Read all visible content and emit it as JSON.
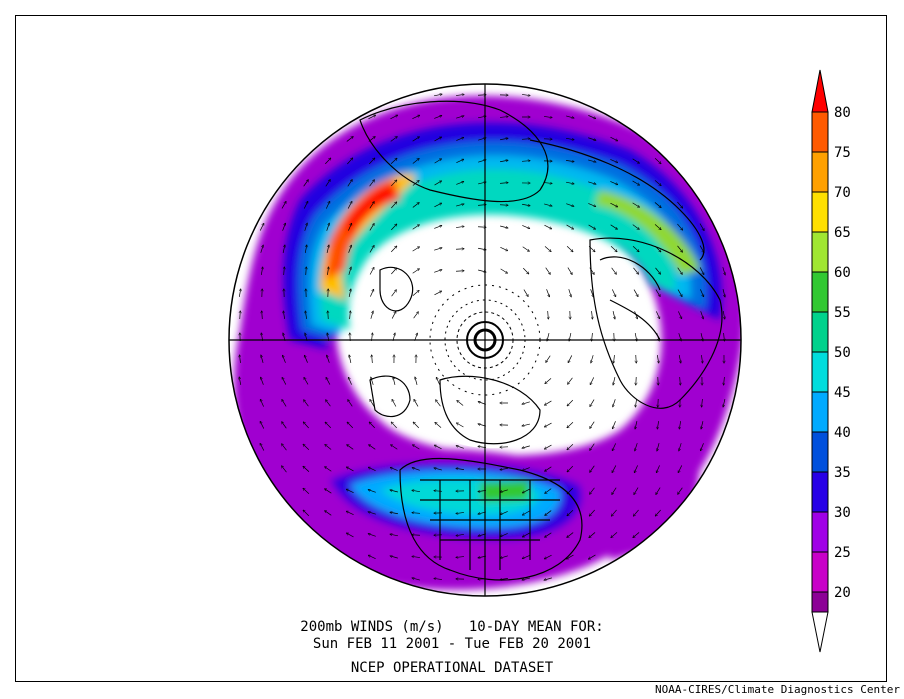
{
  "map": {
    "caption_line1": "200mb WINDS (m/s)   10-DAY MEAN FOR:",
    "caption_line2": "Sun FEB 11 2001 - Tue FEB 20 2001",
    "caption_line3": "NCEP OPERATIONAL DATASET",
    "credit": "NOAA-CIRES/Climate Diagnostics Center",
    "projection": "north polar stereographic",
    "units": "m/s"
  },
  "colorbar": {
    "levels": [
      {
        "label": "80",
        "color": "#ff0000"
      },
      {
        "label": "75",
        "color": "#ff5a00"
      },
      {
        "label": "70",
        "color": "#ffa000"
      },
      {
        "label": "65",
        "color": "#ffe000"
      },
      {
        "label": "60",
        "color": "#a0e632"
      },
      {
        "label": "55",
        "color": "#32c832"
      },
      {
        "label": "50",
        "color": "#00d28c"
      },
      {
        "label": "45",
        "color": "#00dcdc"
      },
      {
        "label": "40",
        "color": "#00aaff"
      },
      {
        "label": "35",
        "color": "#0050dc"
      },
      {
        "label": "30",
        "color": "#2800e6"
      },
      {
        "label": "25",
        "color": "#a000e6"
      },
      {
        "label": "20",
        "color": "#c800c8"
      }
    ],
    "bottom_color": "#8c0096",
    "tip_bottom_color": "#ffffff"
  }
}
